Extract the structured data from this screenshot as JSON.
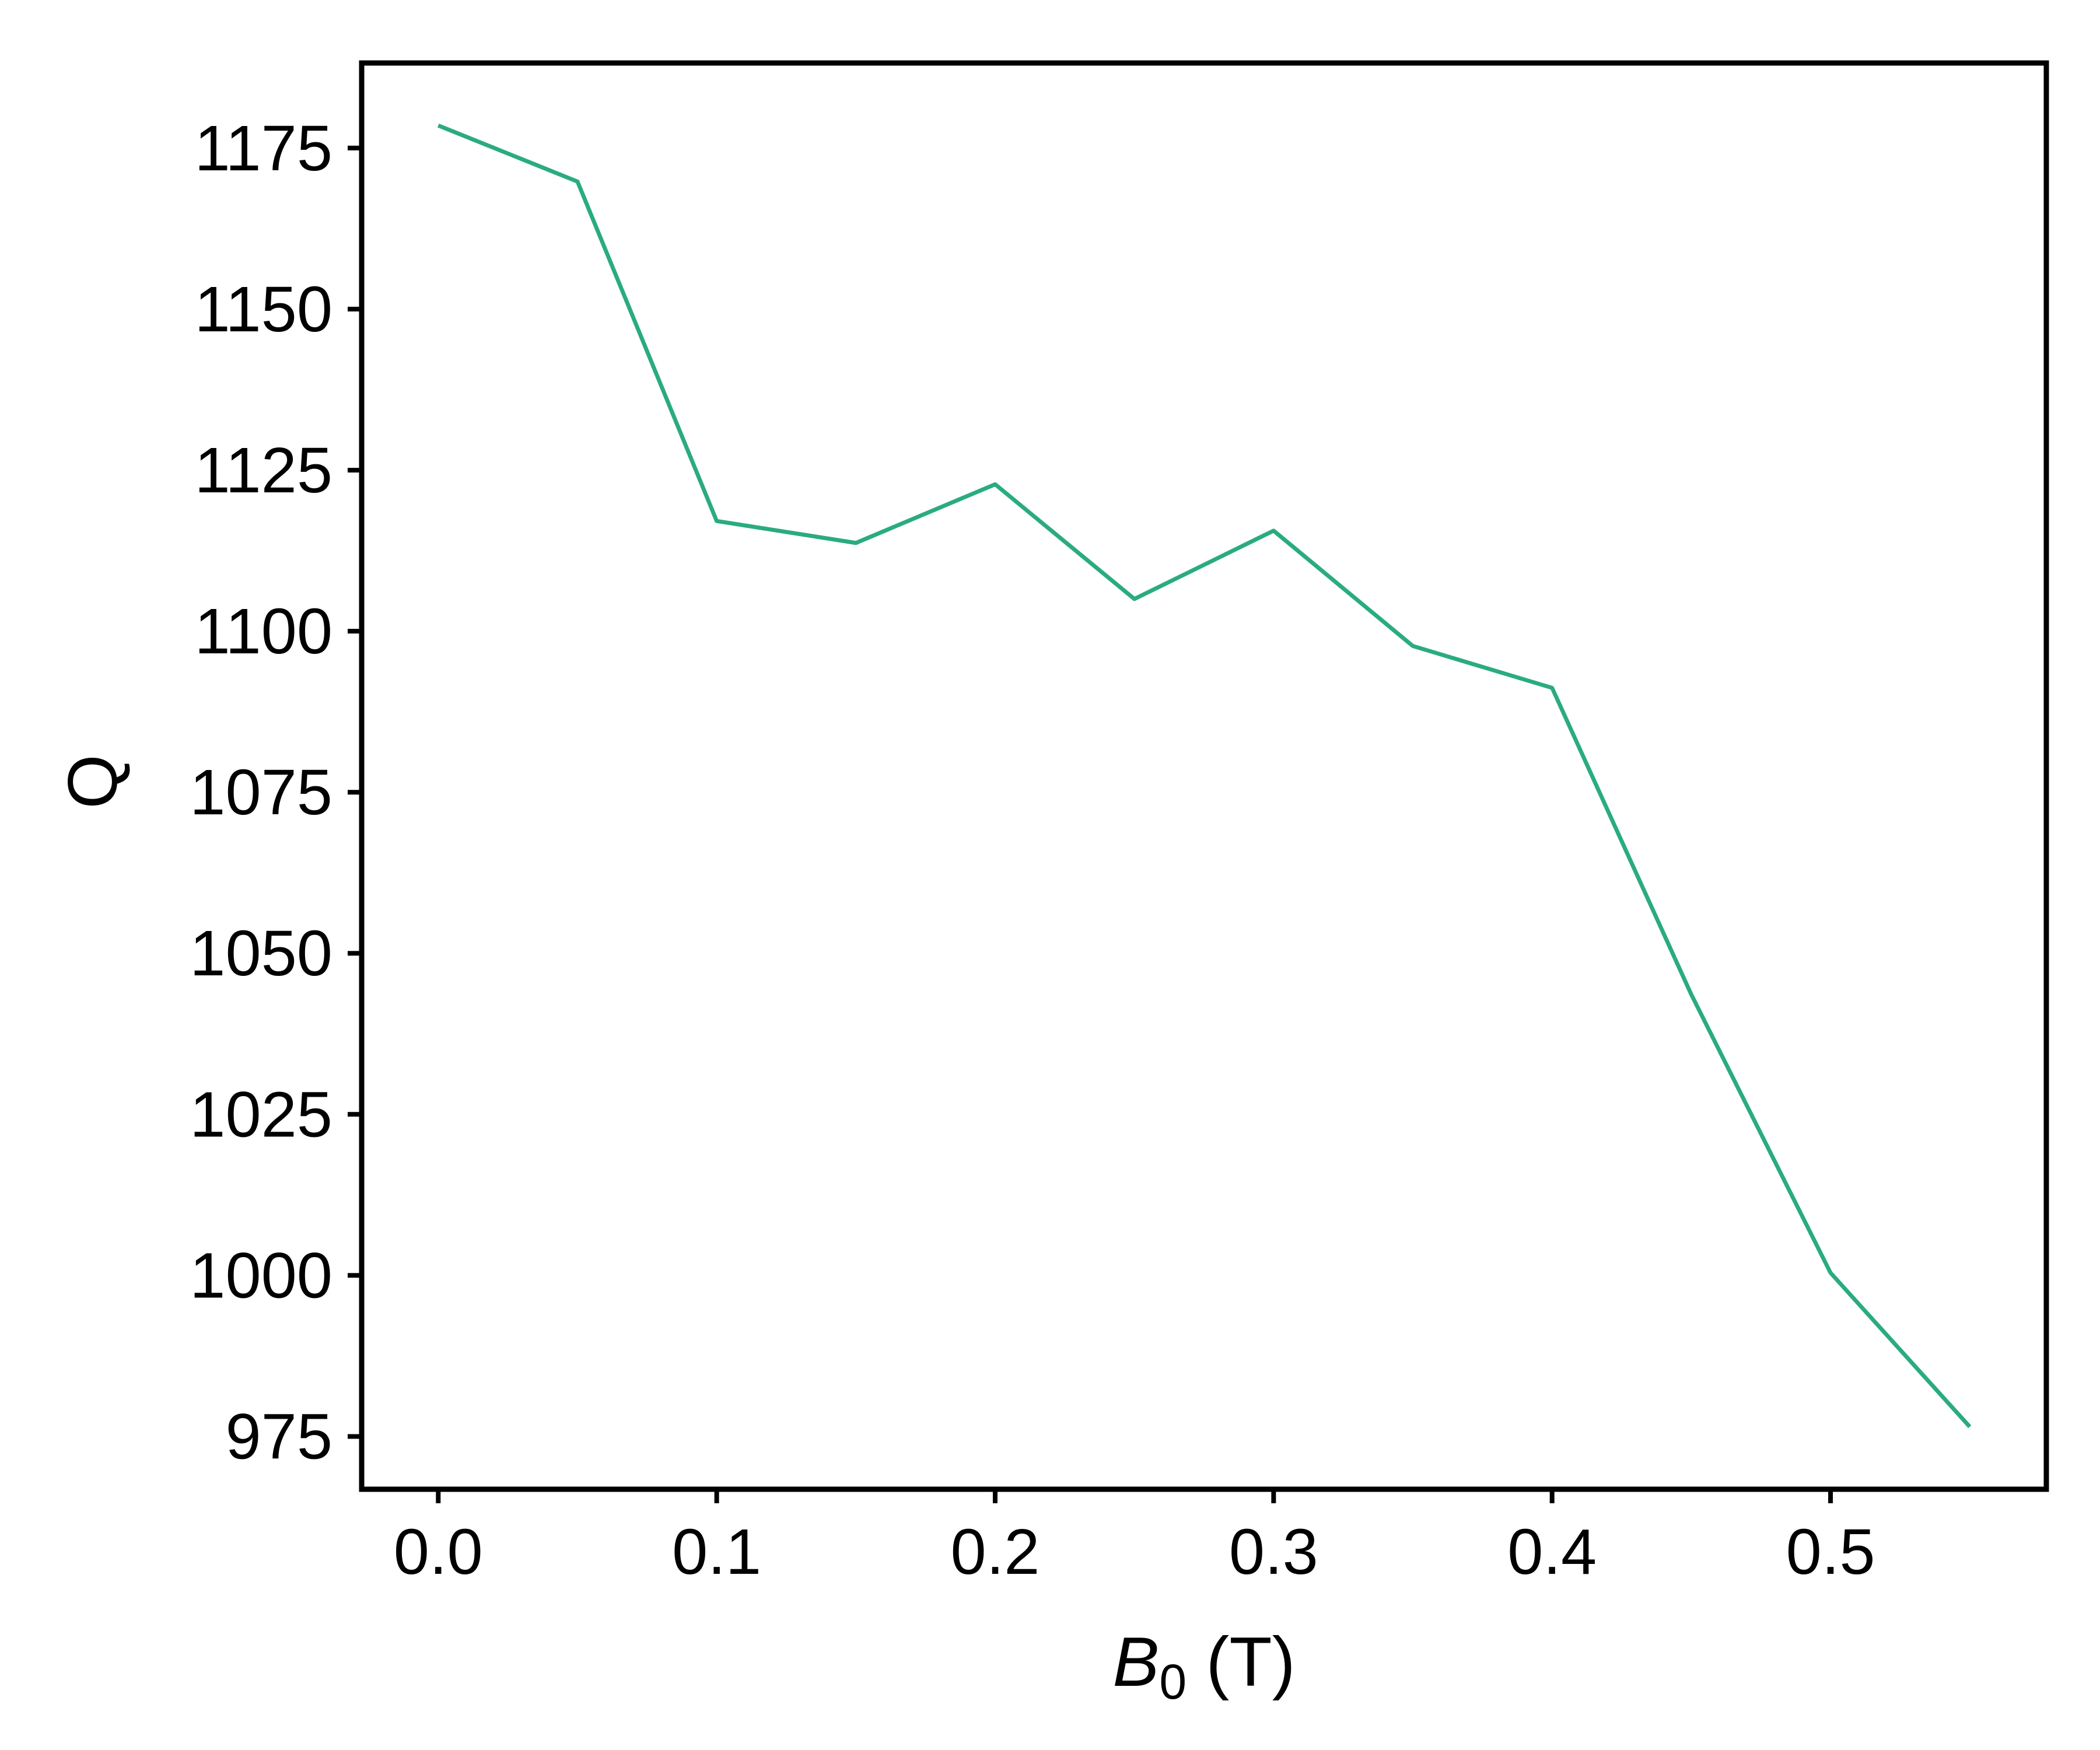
{
  "chart_data": {
    "type": "line",
    "xlabel": "B0 (T)",
    "xlabel_parts": {
      "var": "B",
      "sub": "0",
      "unit": " (T)"
    },
    "ylabel": "Q",
    "xlim": [
      -0.0275,
      0.5775
    ],
    "ylim": [
      966.8,
      1188.2
    ],
    "xticks": [
      0.0,
      0.1,
      0.2,
      0.3,
      0.4,
      0.5
    ],
    "xtick_labels": [
      "0.0",
      "0.1",
      "0.2",
      "0.3",
      "0.4",
      "0.5"
    ],
    "yticks": [
      975,
      1000,
      1025,
      1050,
      1075,
      1100,
      1125,
      1150,
      1175
    ],
    "ytick_labels": [
      "975",
      "1000",
      "1025",
      "1050",
      "1075",
      "1100",
      "1125",
      "1150",
      "1175"
    ],
    "grid": false,
    "legend": "none",
    "series": [
      {
        "color": "#2aab80",
        "x": [
          0.0,
          0.05,
          0.1,
          0.15,
          0.2,
          0.25,
          0.3,
          0.35,
          0.4,
          0.45,
          0.5,
          0.55
        ],
        "y": [
          1178.5,
          1169.8,
          1117.1,
          1113.7,
          1122.8,
          1105.0,
          1115.6,
          1097.7,
          1091.2,
          1043.6,
          1000.4,
          976.5
        ]
      }
    ]
  }
}
